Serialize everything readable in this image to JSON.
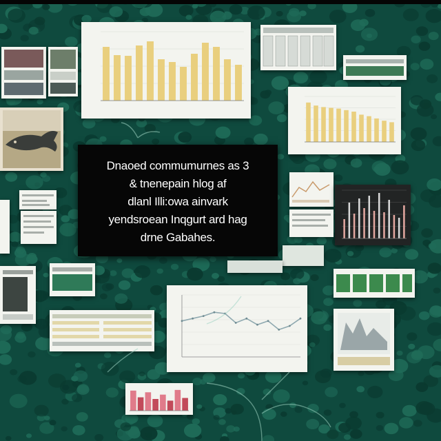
{
  "caption": {
    "lines": [
      "Dnaoed commumurnes as 3",
      "& tnenepain hlog af",
      "dlanl Illi:owa ainvark",
      "yendsroean Inqgurt ard hag",
      "drne Gabahes."
    ]
  },
  "colors": {
    "background": "#0f4a3e",
    "leaf_dark": "#0a3a30",
    "leaf_light": "#1f6b58",
    "bar_gold": "#e9cf7e",
    "caption_bg": "#060606",
    "caption_text": "#ffffff"
  },
  "panels": {
    "bar_chart_large": {
      "values": [
        78,
        66,
        65,
        80,
        86,
        60,
        56,
        49,
        68,
        84,
        78,
        60,
        52
      ]
    },
    "bar_chart_right": {
      "values": [
        52,
        48,
        46,
        45,
        44,
        42,
        40,
        36,
        34,
        31,
        28,
        26
      ]
    },
    "dark_bar_chart": {
      "values": [
        28,
        52,
        36,
        58,
        44,
        62,
        40,
        66,
        38,
        56,
        34,
        30,
        48
      ]
    },
    "line_chart_center": {
      "values": [
        58,
        62,
        66,
        72,
        70,
        55,
        62,
        52,
        58,
        44,
        50,
        62
      ]
    },
    "red_bar_strip": {
      "values": [
        60,
        40,
        55,
        35,
        48,
        30,
        62,
        38
      ]
    }
  },
  "icons": [
    "fish-photo",
    "tree-roots-icon",
    "leaf-pattern"
  ]
}
